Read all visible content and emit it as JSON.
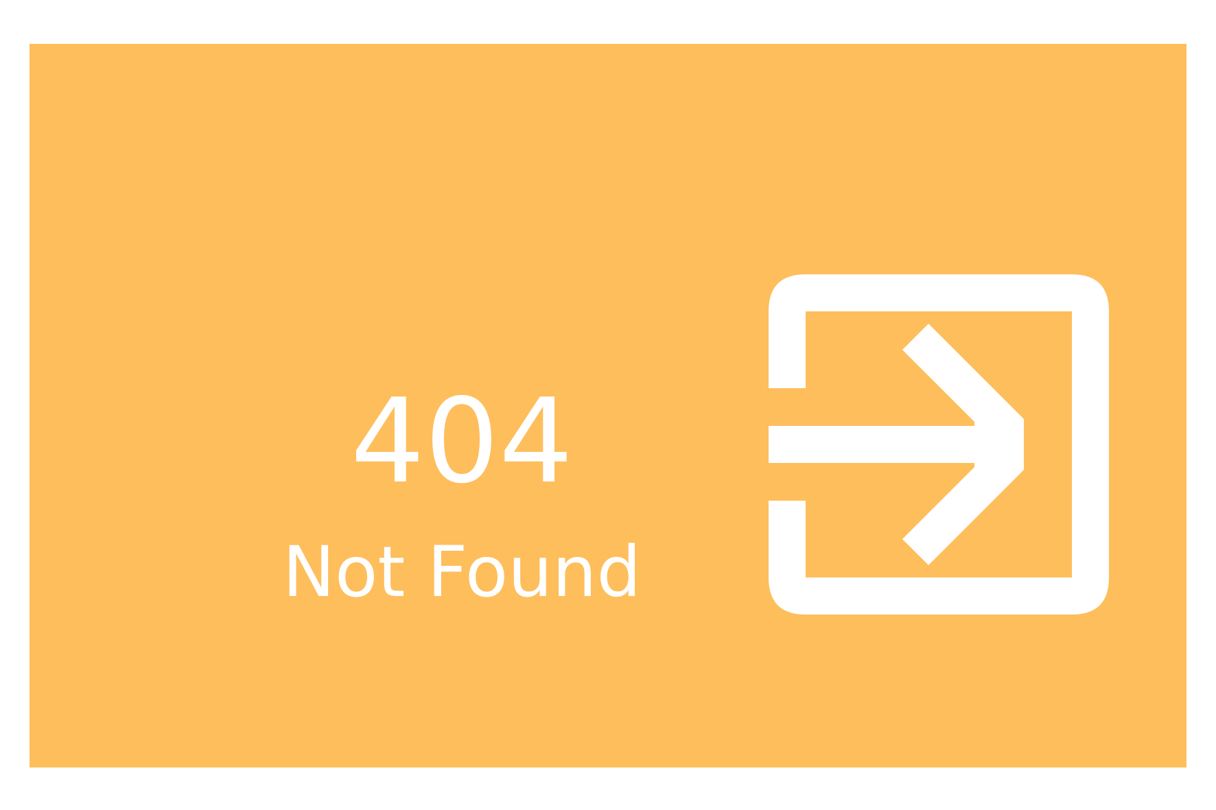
{
  "page": {
    "background_color": "#ffffff",
    "panel_color": "#FEBE5C",
    "text_color": "#ffffff"
  },
  "error": {
    "code": "404",
    "message": "Not Found"
  },
  "icon": {
    "name": "login-icon",
    "color": "#ffffff"
  }
}
